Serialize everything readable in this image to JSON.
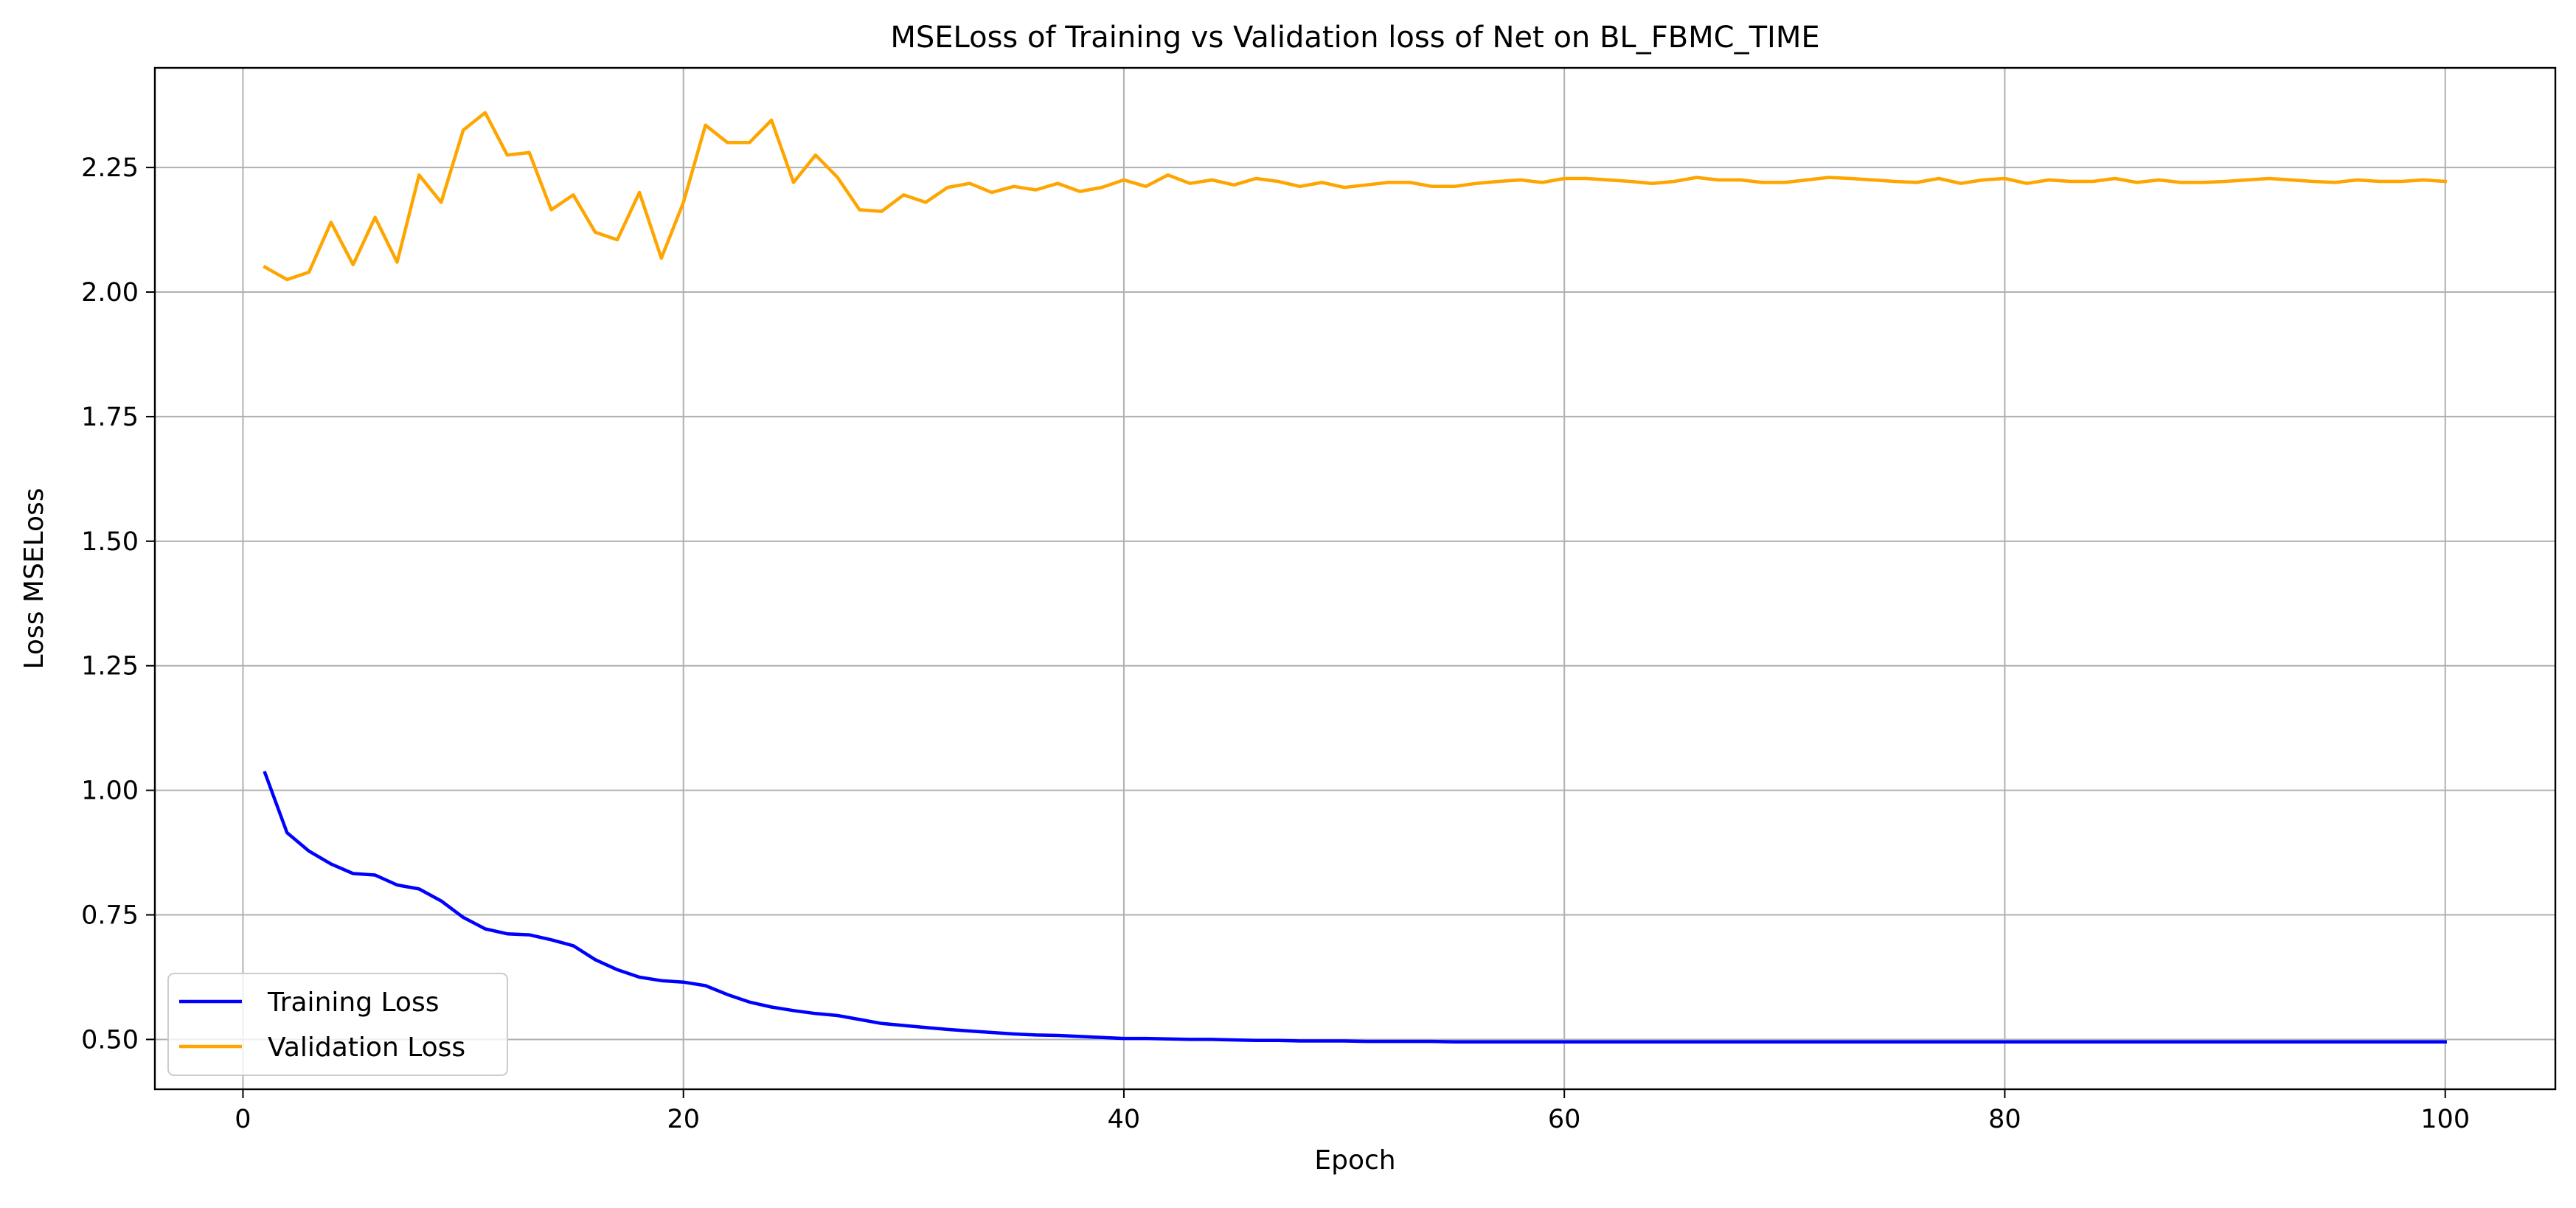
{
  "chart_data": {
    "type": "line",
    "title": "MSELoss of Training vs Validation loss of Net on BL_FBMC_TIME",
    "xlabel": "Epoch",
    "ylabel": "Loss MSELoss",
    "xlim": [
      -4,
      105
    ],
    "ylim": [
      0.4,
      2.45
    ],
    "x_ticks": [
      0,
      20,
      40,
      60,
      80,
      100
    ],
    "y_ticks": [
      0.5,
      0.75,
      1.0,
      1.25,
      1.5,
      1.75,
      2.0,
      2.25
    ],
    "x_tick_labels": [
      "0",
      "20",
      "40",
      "60",
      "80",
      "100"
    ],
    "y_tick_labels": [
      "0.50",
      "0.75",
      "1.00",
      "1.25",
      "1.50",
      "1.75",
      "2.00",
      "2.25"
    ],
    "grid": true,
    "legend_position": "lower-left",
    "x": [
      1,
      2,
      3,
      4,
      5,
      6,
      7,
      8,
      9,
      10,
      11,
      12,
      13,
      14,
      15,
      16,
      17,
      18,
      19,
      20,
      21,
      22,
      23,
      24,
      25,
      26,
      27,
      28,
      29,
      30,
      31,
      32,
      33,
      34,
      35,
      36,
      37,
      38,
      39,
      40,
      41,
      42,
      43,
      44,
      45,
      46,
      47,
      48,
      49,
      50,
      51,
      52,
      53,
      54,
      55,
      56,
      57,
      58,
      59,
      60,
      61,
      62,
      63,
      64,
      65,
      66,
      67,
      68,
      69,
      70,
      71,
      72,
      73,
      74,
      75,
      76,
      77,
      78,
      79,
      80,
      81,
      82,
      83,
      84,
      85,
      86,
      87,
      88,
      89,
      90,
      91,
      92,
      93,
      94,
      95,
      96,
      97,
      98,
      99,
      100
    ],
    "series": [
      {
        "name": "Training Loss",
        "color": "#0000ff",
        "values": [
          1.035,
          0.915,
          0.878,
          0.852,
          0.833,
          0.83,
          0.81,
          0.802,
          0.778,
          0.745,
          0.722,
          0.712,
          0.71,
          0.7,
          0.688,
          0.66,
          0.64,
          0.625,
          0.618,
          0.615,
          0.608,
          0.59,
          0.575,
          0.565,
          0.558,
          0.552,
          0.548,
          0.54,
          0.532,
          0.528,
          0.524,
          0.52,
          0.517,
          0.514,
          0.511,
          0.509,
          0.508,
          0.506,
          0.504,
          0.502,
          0.502,
          0.501,
          0.5,
          0.5,
          0.499,
          0.498,
          0.498,
          0.497,
          0.497,
          0.497,
          0.496,
          0.496,
          0.496,
          0.496,
          0.495,
          0.495,
          0.495,
          0.495,
          0.495,
          0.495,
          0.495,
          0.495,
          0.495,
          0.495,
          0.495,
          0.495,
          0.495,
          0.495,
          0.495,
          0.495,
          0.495,
          0.495,
          0.495,
          0.495,
          0.495,
          0.495,
          0.495,
          0.495,
          0.495,
          0.495,
          0.495,
          0.495,
          0.495,
          0.495,
          0.495,
          0.495,
          0.495,
          0.495,
          0.495,
          0.495,
          0.495,
          0.495,
          0.495,
          0.495,
          0.495,
          0.495,
          0.495,
          0.495,
          0.495,
          0.495
        ]
      },
      {
        "name": "Validation Loss",
        "color": "#ffa500",
        "values": [
          2.05,
          2.025,
          2.04,
          2.14,
          2.055,
          2.15,
          2.06,
          2.235,
          2.18,
          2.325,
          2.36,
          2.275,
          2.28,
          2.165,
          2.195,
          2.12,
          2.105,
          2.2,
          2.068,
          2.18,
          2.335,
          2.3,
          2.3,
          2.345,
          2.22,
          2.275,
          2.23,
          2.165,
          2.162,
          2.195,
          2.18,
          2.21,
          2.218,
          2.2,
          2.212,
          2.205,
          2.218,
          2.202,
          2.21,
          2.225,
          2.212,
          2.235,
          2.218,
          2.225,
          2.215,
          2.228,
          2.222,
          2.212,
          2.22,
          2.21,
          2.215,
          2.22,
          2.22,
          2.212,
          2.212,
          2.218,
          2.222,
          2.225,
          2.22,
          2.228,
          2.228,
          2.225,
          2.222,
          2.218,
          2.222,
          2.23,
          2.225,
          2.225,
          2.22,
          2.22,
          2.225,
          2.23,
          2.228,
          2.225,
          2.222,
          2.22,
          2.228,
          2.218,
          2.225,
          2.228,
          2.218,
          2.225,
          2.222,
          2.222,
          2.228,
          2.22,
          2.225,
          2.22,
          2.22,
          2.222,
          2.225,
          2.228,
          2.225,
          2.222,
          2.22,
          2.225,
          2.222,
          2.222,
          2.225,
          2.222
        ]
      }
    ]
  }
}
